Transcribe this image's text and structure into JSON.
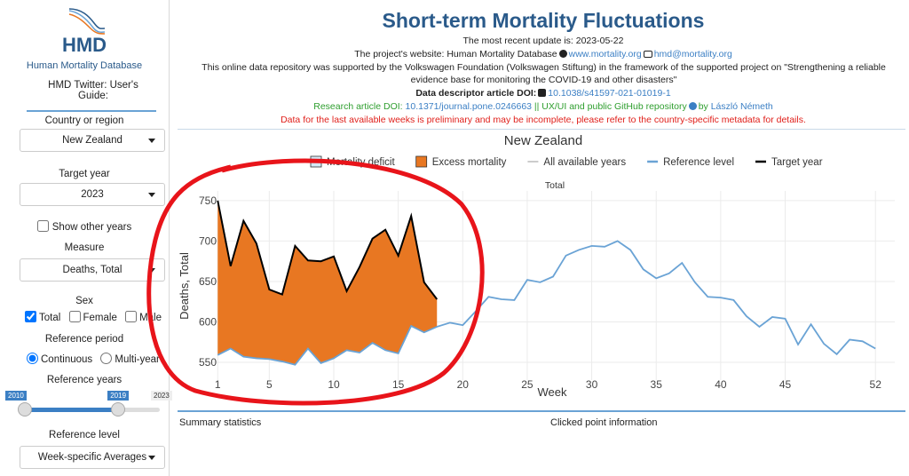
{
  "sidebar": {
    "logo": "HMD",
    "subtitle": "Human Mortality Database",
    "twitter": "HMD Twitter:",
    "users_guide": "User's Guide:",
    "country_label": "Country or region",
    "country": "New Zealand",
    "target_year_label": "Target year",
    "target_year": "2023",
    "show_other_years": "Show other years",
    "measure_label": "Measure",
    "measure": "Deaths, Total",
    "sex_label": "Sex",
    "sex_options": [
      "Total",
      "Female",
      "Male"
    ],
    "reference_period_label": "Reference period",
    "period_options": [
      "Continuous",
      "Multi-year"
    ],
    "reference_years_label": "Reference years",
    "slider": {
      "min": 2010,
      "from": 2019,
      "max": 2023
    },
    "reference_level_label": "Reference level",
    "reference_level": "Week-specific Averages"
  },
  "header": {
    "title": "Short-term Mortality Fluctuations",
    "update": "The most recent update is: 2023-05-22",
    "website_prefix": "The project's website: Human Mortality Database",
    "website": "www.mortality.org",
    "email": "hmd@mortality.org",
    "funding": "This online data repository was supported by the Volkswagen Foundation (Volkswagen Stiftung) in the framework of the supported project on \"Strengthening a reliable evidence base for monitoring the COVID-19 and other disasters\"",
    "descriptor_label": "Data descriptor article DOI:",
    "descriptor_doi": "10.1038/s41597-021-01019-1",
    "research_label": "Research article DOI:",
    "research_doi": "10.1371/journal.pone.0246663",
    "repo": "|| UX/UI and public GitHub repository",
    "by": "by",
    "author": "László Németh",
    "warning": "Data for the last available weeks is preliminary and may be incomplete, please refer to the country-specific metadata for details."
  },
  "footer": {
    "summary": "Summary statistics",
    "clicked": "Clicked point information"
  },
  "chart_data": {
    "type": "line",
    "title": "New Zealand",
    "subtitle": "Total",
    "x_label": "Week",
    "y_label": "Deaths, Total",
    "areas": [
      {
        "name": "Mortality deficit",
        "color": "#d6eaf8"
      },
      {
        "name": "Excess mortality",
        "color": "#e87722"
      }
    ],
    "other_years": {
      "name": "All available years",
      "color": "#cccccc"
    },
    "x": [
      1,
      2,
      3,
      4,
      5,
      6,
      7,
      8,
      9,
      10,
      11,
      12,
      13,
      14,
      15,
      16,
      17,
      18,
      19,
      20,
      21,
      22,
      23,
      24,
      25,
      26,
      27,
      28,
      29,
      30,
      31,
      32,
      33,
      34,
      35,
      36,
      37,
      38,
      39,
      40,
      41,
      42,
      43,
      44,
      45,
      46,
      47,
      48,
      49,
      50,
      51,
      52
    ],
    "series": [
      {
        "name": "Reference level",
        "color": "#6aa3d5",
        "values": [
          559,
          567,
          557,
          555,
          554,
          551,
          547,
          567,
          549,
          555,
          565,
          562,
          574,
          565,
          561,
          595,
          587,
          594,
          599,
          596,
          613,
          631,
          628,
          627,
          652,
          649,
          656,
          682,
          689,
          694,
          693,
          700,
          689,
          665,
          654,
          660,
          673,
          649,
          631,
          630,
          627,
          607,
          594,
          606,
          604,
          572,
          597,
          573,
          560,
          578,
          576,
          567
        ]
      },
      {
        "name": "Target year",
        "color": "#000000",
        "values": [
          750,
          669,
          725,
          697,
          640,
          634,
          694,
          676,
          675,
          681,
          638,
          668,
          703,
          714,
          682,
          731,
          649,
          628,
          null,
          null,
          null,
          null,
          null,
          null,
          null,
          null,
          null,
          null,
          null,
          null,
          null,
          null,
          null,
          null,
          null,
          null,
          null,
          null,
          null,
          null,
          null,
          null,
          null,
          null,
          null,
          null,
          null,
          null,
          null,
          null,
          null,
          null
        ]
      }
    ],
    "xlim": [
      0.5,
      53.5
    ],
    "xticks": [
      1,
      5,
      10,
      15,
      20,
      25,
      30,
      35,
      40,
      45,
      52
    ],
    "ylim": [
      528,
      762
    ],
    "yticks": [
      550,
      600,
      650,
      700,
      750
    ],
    "grid": true
  }
}
